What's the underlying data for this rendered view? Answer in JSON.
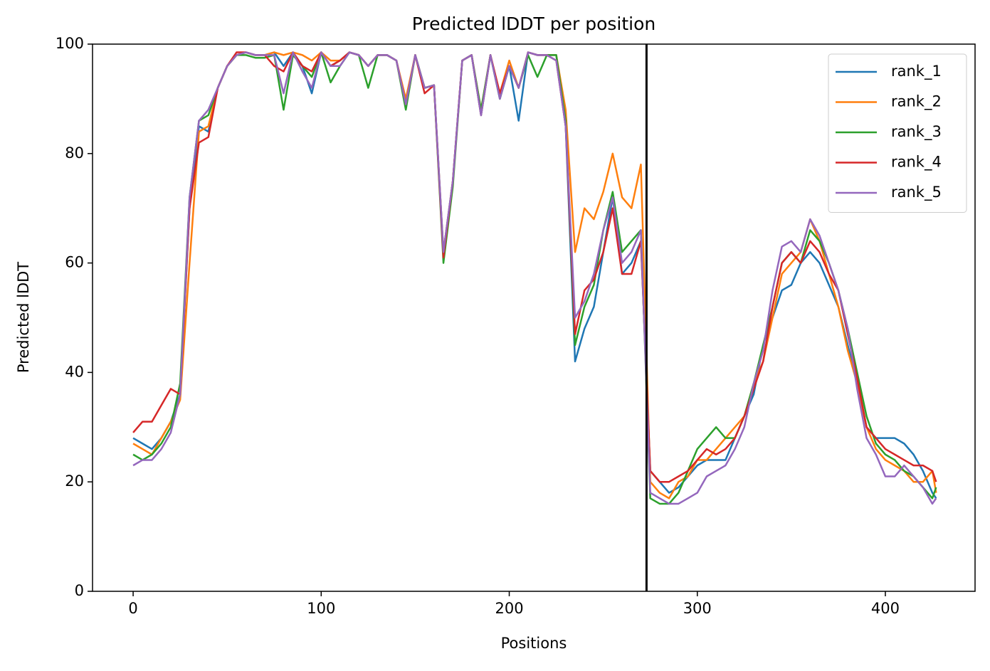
{
  "chart_data": {
    "type": "line",
    "title": "Predicted lDDT per position",
    "xlabel": "Positions",
    "ylabel": "Predicted lDDT",
    "x": [
      0,
      5,
      10,
      15,
      20,
      25,
      30,
      35,
      40,
      45,
      50,
      55,
      60,
      65,
      70,
      75,
      80,
      85,
      90,
      95,
      100,
      105,
      110,
      115,
      120,
      125,
      130,
      135,
      140,
      145,
      150,
      155,
      160,
      165,
      170,
      175,
      180,
      185,
      190,
      195,
      200,
      205,
      210,
      215,
      220,
      225,
      230,
      235,
      240,
      245,
      250,
      255,
      260,
      265,
      270,
      275,
      280,
      285,
      290,
      295,
      300,
      305,
      310,
      315,
      320,
      325,
      330,
      335,
      340,
      345,
      350,
      355,
      360,
      365,
      370,
      375,
      380,
      385,
      390,
      395,
      400,
      405,
      410,
      415,
      420,
      425,
      427
    ],
    "series": [
      {
        "name": "rank_1",
        "color": "#1f77b4",
        "values": [
          28,
          27,
          26,
          28,
          31,
          36,
          70,
          85,
          84,
          92,
          96,
          98,
          98.5,
          98,
          98,
          98.5,
          96,
          98.5,
          96,
          91,
          98.5,
          96,
          97,
          98.5,
          98,
          96,
          98,
          98,
          97,
          89,
          98,
          92,
          92.5,
          62,
          75,
          97,
          98,
          87,
          98,
          90,
          96,
          86,
          98.5,
          98,
          98,
          98,
          85,
          42,
          48,
          52,
          62,
          72,
          58,
          60,
          64,
          22,
          20,
          18,
          19,
          21,
          23,
          24,
          24,
          24,
          28,
          32,
          36,
          45,
          50,
          55,
          56,
          60,
          62,
          60,
          56,
          52,
          45,
          38,
          30,
          28,
          28,
          28,
          27,
          25,
          22,
          18,
          17
        ]
      },
      {
        "name": "rank_2",
        "color": "#ff7f0e",
        "values": [
          27,
          26,
          25,
          28,
          31,
          35,
          60,
          84,
          85,
          92,
          96,
          98,
          98.5,
          98,
          98,
          98.5,
          98,
          98.5,
          98,
          97,
          98.5,
          97,
          97,
          98.5,
          98,
          96,
          98,
          98,
          97,
          90,
          98,
          92,
          92.5,
          62,
          75,
          97,
          98,
          88,
          98,
          91,
          97,
          92,
          98.5,
          98,
          98,
          98,
          88,
          62,
          70,
          68,
          73,
          80,
          72,
          70,
          78,
          20,
          18,
          17,
          20,
          21,
          24,
          24,
          26,
          28,
          30,
          32,
          38,
          42,
          50,
          58,
          60,
          62,
          68,
          64,
          58,
          52,
          44,
          38,
          30,
          26,
          24,
          23,
          22,
          20,
          20,
          22,
          18
        ]
      },
      {
        "name": "rank_3",
        "color": "#2ca02c",
        "values": [
          25,
          24,
          25,
          27,
          30,
          38,
          72,
          86,
          87,
          92,
          96,
          98,
          98,
          97.5,
          97.5,
          98,
          88,
          98,
          96,
          94,
          98.5,
          93,
          96,
          98.5,
          98,
          92,
          98,
          98,
          97,
          88,
          98,
          92,
          92.5,
          60,
          74,
          97,
          98,
          88,
          98,
          90,
          96,
          92,
          98,
          94,
          98,
          98,
          86,
          45,
          52,
          56,
          66,
          73,
          62,
          64,
          66,
          17,
          16,
          16,
          18,
          22,
          26,
          28,
          30,
          28,
          28,
          32,
          38,
          45,
          52,
          60,
          62,
          60,
          66,
          64,
          60,
          55,
          48,
          40,
          32,
          27,
          25,
          24,
          22,
          21,
          19,
          17,
          19
        ]
      },
      {
        "name": "rank_4",
        "color": "#d62728",
        "values": [
          29,
          31,
          31,
          34,
          37,
          36,
          70,
          82,
          83,
          92,
          96,
          98.5,
          98.5,
          98,
          98,
          96,
          95,
          98.5,
          96,
          95,
          98.5,
          96,
          97,
          98.5,
          98,
          96,
          98,
          98,
          97,
          89,
          98,
          91,
          92.5,
          61,
          75,
          97,
          98,
          87,
          98,
          91,
          96,
          92,
          98.5,
          98,
          98,
          97,
          85,
          47,
          55,
          57,
          62,
          70,
          58,
          58,
          64,
          22,
          20,
          20,
          21,
          22,
          24,
          26,
          25,
          26,
          28,
          32,
          37,
          42,
          52,
          60,
          62,
          60,
          64,
          62,
          58,
          55,
          47,
          39,
          30,
          28,
          26,
          25,
          24,
          23,
          23,
          22,
          20
        ]
      },
      {
        "name": "rank_5",
        "color": "#9467bd",
        "values": [
          23,
          24,
          24,
          26,
          29,
          36,
          72,
          86,
          88,
          92,
          96,
          98,
          98.5,
          98,
          98,
          98,
          91,
          98.5,
          95,
          92,
          98.5,
          96,
          96,
          98.5,
          98,
          96,
          98,
          98,
          97,
          89,
          98,
          92,
          92.5,
          62,
          75,
          97,
          98,
          87,
          98,
          90,
          96,
          92,
          98.5,
          98,
          98,
          97,
          85,
          50,
          53,
          58,
          66,
          72,
          60,
          62,
          66,
          18,
          17,
          16,
          16,
          17,
          18,
          21,
          22,
          23,
          26,
          30,
          38,
          44,
          55,
          63,
          64,
          62,
          68,
          65,
          60,
          55,
          48,
          37,
          28,
          25,
          21,
          21,
          23,
          21,
          19,
          16,
          17
        ]
      }
    ],
    "vlines": [
      273
    ],
    "vline_color": "#000000",
    "xlim": [
      -21.6,
      447.7
    ],
    "xticks": [
      0,
      100,
      200,
      300,
      400
    ],
    "ylim": [
      0,
      100
    ],
    "yticks": [
      0,
      20,
      40,
      60,
      80,
      100
    ],
    "grid": false,
    "legend": "upper right"
  }
}
